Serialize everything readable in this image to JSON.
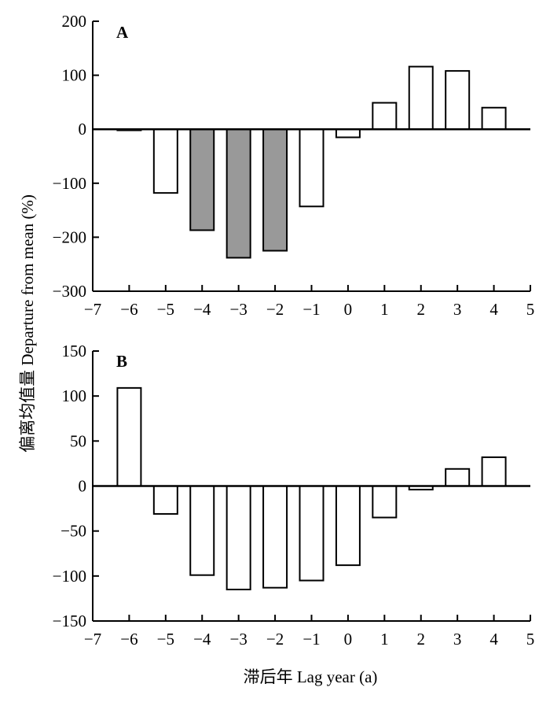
{
  "ylabel": "偏离均值量 Departure from mean (%)",
  "xlabel": "滞后年 Lag year (a)",
  "chart_data": [
    {
      "type": "bar",
      "panel_label": "A",
      "categories": [
        -6,
        -5,
        -4,
        -3,
        -2,
        -1,
        0,
        1,
        2,
        3,
        4
      ],
      "values": [
        -2,
        -118,
        -187,
        -238,
        -225,
        -143,
        -15,
        49,
        116,
        108,
        40
      ],
      "highlighted": [
        false,
        false,
        true,
        true,
        true,
        false,
        false,
        false,
        false,
        false,
        false
      ],
      "colors": {
        "normal": "#ffffff",
        "highlight": "#999999",
        "stroke": "#000000"
      },
      "xlim": [
        -7,
        5
      ],
      "xticks": [
        -7,
        -6,
        -5,
        -4,
        -3,
        -2,
        -1,
        0,
        1,
        2,
        3,
        4,
        5
      ],
      "ylim": [
        -300,
        200
      ],
      "yticks": [
        -300,
        -200,
        -100,
        0,
        100,
        200
      ],
      "grid": false
    },
    {
      "type": "bar",
      "panel_label": "B",
      "categories": [
        -6,
        -5,
        -4,
        -3,
        -2,
        -1,
        0,
        1,
        2,
        3,
        4
      ],
      "values": [
        109,
        -31,
        -99,
        -115,
        -113,
        -105,
        -88,
        -35,
        -4,
        19,
        32
      ],
      "highlighted": [
        false,
        false,
        false,
        false,
        false,
        false,
        false,
        false,
        false,
        false,
        false
      ],
      "colors": {
        "normal": "#ffffff",
        "highlight": "#999999",
        "stroke": "#000000"
      },
      "xlim": [
        -7,
        5
      ],
      "xticks": [
        -7,
        -6,
        -5,
        -4,
        -3,
        -2,
        -1,
        0,
        1,
        2,
        3,
        4,
        5
      ],
      "ylim": [
        -150,
        150
      ],
      "yticks": [
        -150,
        -100,
        -50,
        0,
        50,
        100,
        150
      ],
      "grid": false
    }
  ]
}
